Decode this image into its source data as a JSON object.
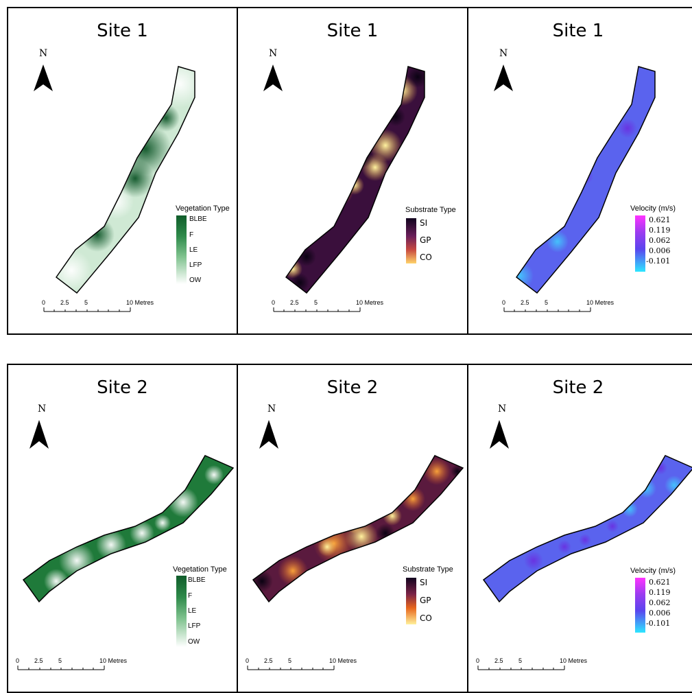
{
  "panels": [
    {
      "title": "Site 1",
      "north": "N",
      "legend_title": "Vegetation Type",
      "categories": [
        "BLBE",
        "F",
        "LE",
        "LFP",
        "OW"
      ],
      "scale": {
        "t0": "0",
        "t25": "2.5",
        "t5": "5",
        "t10": "10 Metres"
      }
    },
    {
      "title": "Site 1",
      "north": "N",
      "legend_title": "Substrate Type",
      "categories": [
        "SI",
        "GP",
        "CO"
      ],
      "scale": {
        "t0": "0",
        "t25": "2.5",
        "t5": "5",
        "t10": "10 Metres"
      }
    },
    {
      "title": "Site 1",
      "north": "N",
      "legend_title": "Velocity (m/s)",
      "categories": [
        "0.621",
        "0.119",
        "0.062",
        "0.006",
        "-0.101"
      ],
      "scale": {
        "t0": "0",
        "t25": "2.5",
        "t5": "5",
        "t10": "10 Metres"
      }
    },
    {
      "title": "Site 2",
      "north": "N",
      "legend_title": "Vegetation Type",
      "categories": [
        "BLBE",
        "F",
        "LE",
        "LFP",
        "OW"
      ],
      "scale": {
        "t0": "0",
        "t25": "2.5",
        "t5": "5",
        "t10": "10 Metres"
      }
    },
    {
      "title": "Site 2",
      "north": "N",
      "legend_title": "Substrate Type",
      "categories": [
        "SI",
        "GP",
        "CO"
      ],
      "scale": {
        "t0": "0",
        "t25": "2.5",
        "t5": "5",
        "t10": "10 Metres"
      }
    },
    {
      "title": "Site 2",
      "north": "N",
      "legend_title": "Velocity (m/s)",
      "categories": [
        "0.621",
        "0.119",
        "0.062",
        "0.006",
        "-0.101"
      ],
      "scale": {
        "t0": "0",
        "t25": "2.5",
        "t5": "5",
        "t10": "10 Metres"
      }
    }
  ],
  "colors": {
    "vegetation_ramp": [
      "#0f5c2a",
      "#ffffff"
    ],
    "substrate_ramp": [
      "#12041f",
      "#6b1f5a",
      "#e8671d",
      "#fff09a"
    ],
    "velocity_ramp": [
      "#ff33ff",
      "#9b3cf0",
      "#5a45ee",
      "#4d6af0",
      "#2ee6ff"
    ]
  }
}
